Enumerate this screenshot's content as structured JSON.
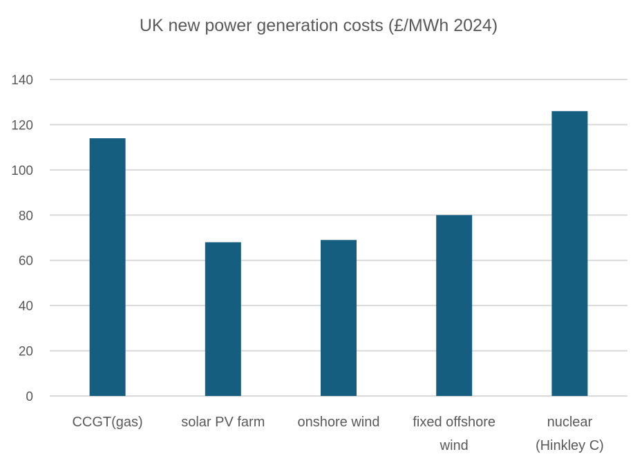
{
  "chart_data": {
    "type": "bar",
    "title": "UK new power generation costs (£/MWh 2024)",
    "xlabel": "",
    "ylabel": "",
    "categories": [
      [
        "CCGT(gas)"
      ],
      [
        "solar PV farm"
      ],
      [
        "onshore wind"
      ],
      [
        "fixed offshore",
        "wind"
      ],
      [
        "nuclear",
        "(Hinkley C)"
      ]
    ],
    "values": [
      114,
      68,
      69,
      80,
      126
    ],
    "ylim": [
      0,
      140
    ],
    "yticks": [
      0,
      20,
      40,
      60,
      80,
      100,
      120,
      140
    ],
    "grid": true,
    "legend": "none",
    "bar_color": "#165e80"
  }
}
